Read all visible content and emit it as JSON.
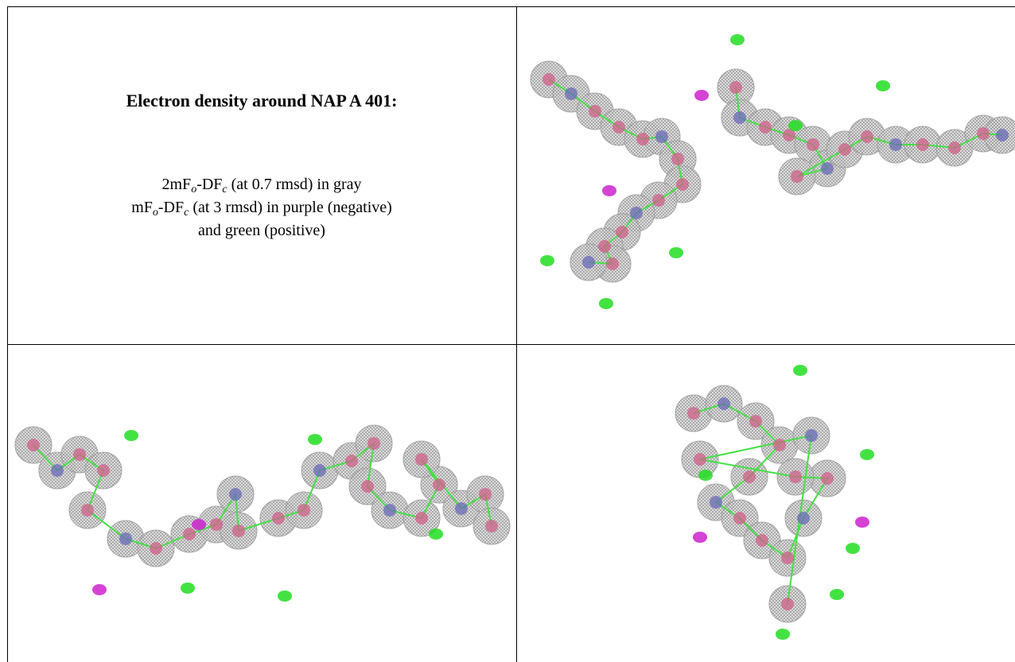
{
  "title": "Electron density around NAP A 401:",
  "caption": {
    "line1": [
      "2mF",
      "o",
      "-DF",
      "c",
      " (at 0.7 rmsd) in gray"
    ],
    "line2": [
      "mF",
      "o",
      "-DF",
      "c",
      " (at 3 rmsd) in purple (negative)"
    ],
    "line3": "and green (positive)"
  }
}
